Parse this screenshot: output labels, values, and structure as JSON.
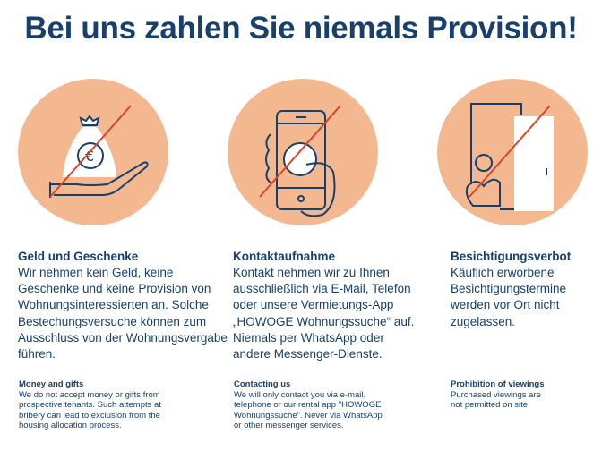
{
  "title": "Bei uns zahlen Sie niemals Provision!",
  "colors": {
    "text": "#17406d",
    "circle": "#f4b890",
    "slash": "#d9452a"
  },
  "items": [
    {
      "icon": "money-bag-hand-icon",
      "heading": "Geld und Geschenke",
      "body": "Wir nehmen kein Geld, keine Geschenke und keine Provision von Wohnungsinteressierten an. Solche Bestechungsversuche können zum Ausschluss von der Wohnungsvergabe führen.",
      "en_heading": "Money and gifts",
      "en_body": "We do not accept money or gifts from prospective tenants. Such attempts at bribery can lead to exclusion from the housing allocation process."
    },
    {
      "icon": "phone-whatsapp-icon",
      "heading": "Kontaktaufnahme",
      "body": "Kontakt nehmen wir zu Ihnen ausschließlich via E-Mail, Telefon oder unsere Vermietungs-App „HOWOGE Wohnungssuche“ auf. Niemals per WhatsApp oder andere Messenger-Dienste.",
      "en_heading": "Contacting us",
      "en_body": "We will only contact you via e-mail, telephone or our rental app \"HOWOGE Wohnungssuche\". Never via WhatsApp or other messenger services."
    },
    {
      "icon": "person-door-icon",
      "heading": "Besichtigungsverbot",
      "body": "Käuflich erworbene Besichtigungstermine werden vor Ort nicht zugelassen.",
      "en_heading": "Prohibition of viewings",
      "en_body": "Purchased viewings are not permitted on site."
    }
  ]
}
